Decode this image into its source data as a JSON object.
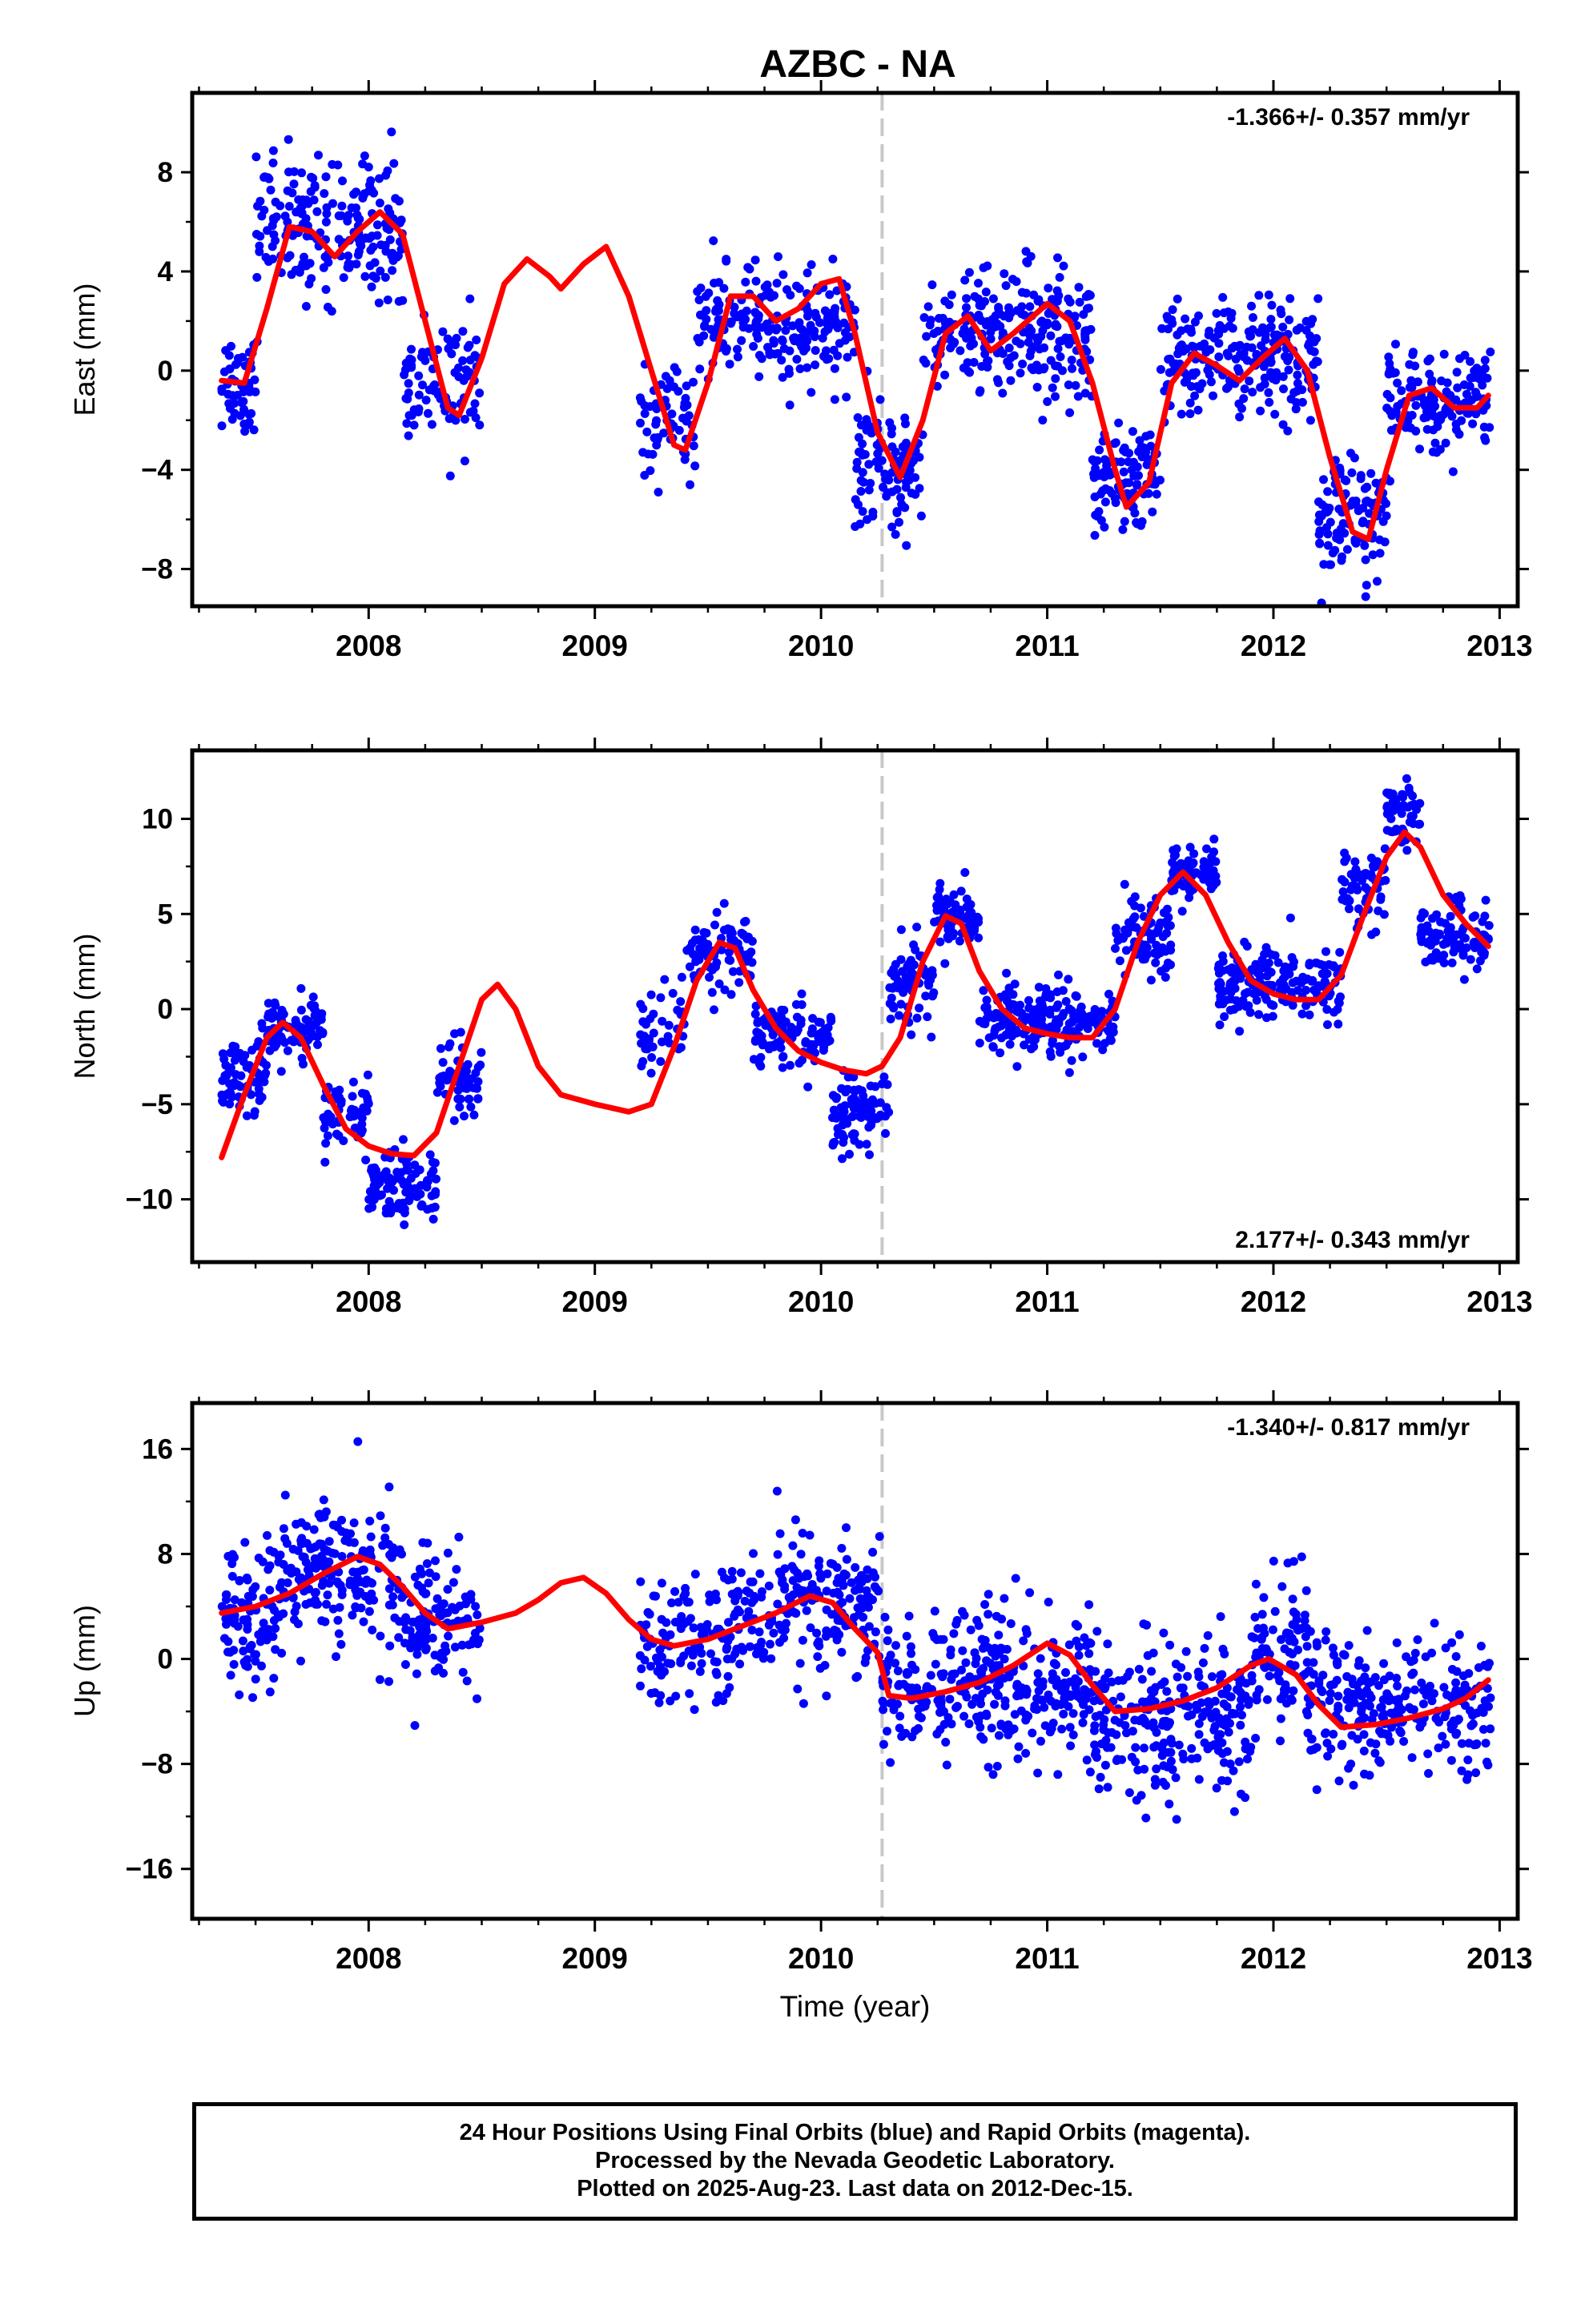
{
  "title": "AZBC - NA",
  "colors": {
    "points": "#0000ff",
    "fit": "#ff0000",
    "event_line": "#c8c8c8",
    "frame": "#000000"
  },
  "footer": {
    "line1": "24 Hour Positions Using Final Orbits (blue) and Rapid Orbits (magenta).",
    "line2": "Processed by the Nevada Geodetic Laboratory.",
    "line3": "Plotted on 2025-Aug-23. Last data on 2012-Dec-15."
  },
  "chart_data": [
    {
      "type": "scatter",
      "ylabel": "East (mm)",
      "xlabel": "",
      "rate_label": "-1.366+/- 0.357 mm/yr",
      "xlim": [
        2007.22,
        2013.08
      ],
      "ylim": [
        -9.5,
        11.2
      ],
      "yticks": [
        -8,
        -4,
        0,
        4,
        8
      ],
      "xticks": [
        2008,
        2009,
        2010,
        2011,
        2012,
        2013
      ],
      "event_line_x": 2010.27,
      "fit_curve": [
        [
          2007.35,
          -0.4
        ],
        [
          2007.45,
          -0.5
        ],
        [
          2007.55,
          2.5
        ],
        [
          2007.65,
          5.8
        ],
        [
          2007.75,
          5.6
        ],
        [
          2007.85,
          4.6
        ],
        [
          2007.95,
          5.6
        ],
        [
          2008.05,
          6.4
        ],
        [
          2008.15,
          5.5
        ],
        [
          2008.25,
          2.0
        ],
        [
          2008.35,
          -1.5
        ],
        [
          2008.4,
          -1.8
        ],
        [
          2008.5,
          0.5
        ],
        [
          2008.6,
          3.5
        ],
        [
          2008.7,
          4.5
        ],
        [
          2008.8,
          3.8
        ],
        [
          2008.85,
          3.3
        ],
        [
          2008.95,
          4.3
        ],
        [
          2009.05,
          5.0
        ],
        [
          2009.15,
          3.0
        ],
        [
          2009.25,
          0.0
        ],
        [
          2009.35,
          -3.0
        ],
        [
          2009.4,
          -3.2
        ],
        [
          2009.5,
          -0.5
        ],
        [
          2009.6,
          3.0
        ],
        [
          2009.7,
          3.0
        ],
        [
          2009.8,
          2.0
        ],
        [
          2009.9,
          2.5
        ],
        [
          2010.0,
          3.5
        ],
        [
          2010.08,
          3.7
        ],
        [
          2010.15,
          1.5
        ],
        [
          2010.25,
          -2.5
        ],
        [
          2010.35,
          -4.3
        ],
        [
          2010.45,
          -2.0
        ],
        [
          2010.55,
          1.5
        ],
        [
          2010.65,
          2.2
        ],
        [
          2010.75,
          0.8
        ],
        [
          2010.85,
          1.5
        ],
        [
          2011.0,
          2.7
        ],
        [
          2011.1,
          2.0
        ],
        [
          2011.2,
          -0.5
        ],
        [
          2011.3,
          -4.0
        ],
        [
          2011.35,
          -5.5
        ],
        [
          2011.45,
          -4.5
        ],
        [
          2011.55,
          -0.5
        ],
        [
          2011.65,
          0.7
        ],
        [
          2011.75,
          0.2
        ],
        [
          2011.85,
          -0.4
        ],
        [
          2011.95,
          0.5
        ],
        [
          2012.05,
          1.3
        ],
        [
          2012.15,
          0.0
        ],
        [
          2012.25,
          -3.5
        ],
        [
          2012.35,
          -6.5
        ],
        [
          2012.42,
          -6.8
        ],
        [
          2012.5,
          -4.0
        ],
        [
          2012.6,
          -1.0
        ],
        [
          2012.7,
          -0.7
        ],
        [
          2012.8,
          -1.5
        ],
        [
          2012.9,
          -1.5
        ],
        [
          2012.95,
          -1.0
        ]
      ],
      "point_segments": [
        {
          "x": [
            2007.35,
            2007.5
          ],
          "n": 50,
          "base": -0.4,
          "spread": 1.6
        },
        {
          "x": [
            2007.5,
            2008.15
          ],
          "n": 210,
          "base": 5.8,
          "spread": 1.9
        },
        {
          "x": [
            2008.15,
            2008.5
          ],
          "n": 90,
          "base": -0.6,
          "spread": 1.8
        },
        {
          "x": [
            2009.2,
            2009.45
          ],
          "n": 60,
          "base": -2.2,
          "spread": 1.6
        },
        {
          "x": [
            2009.45,
            2010.15
          ],
          "n": 220,
          "base": 1.8,
          "spread": 1.6
        },
        {
          "x": [
            2010.15,
            2010.45
          ],
          "n": 110,
          "base": -4.0,
          "spread": 1.8
        },
        {
          "x": [
            2010.45,
            2011.2
          ],
          "n": 250,
          "base": 1.6,
          "spread": 1.8
        },
        {
          "x": [
            2011.2,
            2011.5
          ],
          "n": 110,
          "base": -4.6,
          "spread": 1.6
        },
        {
          "x": [
            2011.5,
            2012.2
          ],
          "n": 230,
          "base": 0.5,
          "spread": 1.6
        },
        {
          "x": [
            2012.2,
            2012.5
          ],
          "n": 110,
          "base": -6.0,
          "spread": 1.7
        },
        {
          "x": [
            2012.5,
            2012.96
          ],
          "n": 150,
          "base": -1.2,
          "spread": 1.4
        }
      ]
    },
    {
      "type": "scatter",
      "ylabel": "North (mm)",
      "xlabel": "",
      "rate_label": "2.177+/- 0.343 mm/yr",
      "xlim": [
        2007.22,
        2013.08
      ],
      "ylim": [
        -13.3,
        13.6
      ],
      "yticks": [
        -10,
        -5,
        0,
        5,
        10
      ],
      "xticks": [
        2008,
        2009,
        2010,
        2011,
        2012,
        2013
      ],
      "event_line_x": 2010.27,
      "fit_curve": [
        [
          2007.35,
          -7.8
        ],
        [
          2007.45,
          -4.5
        ],
        [
          2007.55,
          -1.5
        ],
        [
          2007.62,
          -0.7
        ],
        [
          2007.7,
          -1.5
        ],
        [
          2007.8,
          -4.0
        ],
        [
          2007.9,
          -6.3
        ],
        [
          2008.0,
          -7.2
        ],
        [
          2008.1,
          -7.6
        ],
        [
          2008.2,
          -7.7
        ],
        [
          2008.3,
          -6.5
        ],
        [
          2008.4,
          -3.0
        ],
        [
          2008.5,
          0.5
        ],
        [
          2008.57,
          1.3
        ],
        [
          2008.65,
          0.0
        ],
        [
          2008.75,
          -3.0
        ],
        [
          2008.85,
          -4.5
        ],
        [
          2009.0,
          -5.0
        ],
        [
          2009.15,
          -5.4
        ],
        [
          2009.25,
          -5.0
        ],
        [
          2009.35,
          -2.0
        ],
        [
          2009.45,
          1.5
        ],
        [
          2009.55,
          3.5
        ],
        [
          2009.62,
          3.2
        ],
        [
          2009.7,
          1.0
        ],
        [
          2009.8,
          -1.0
        ],
        [
          2009.9,
          -2.2
        ],
        [
          2010.0,
          -2.8
        ],
        [
          2010.1,
          -3.2
        ],
        [
          2010.2,
          -3.4
        ],
        [
          2010.27,
          -3.0
        ],
        [
          2010.35,
          -1.5
        ],
        [
          2010.45,
          2.5
        ],
        [
          2010.55,
          4.9
        ],
        [
          2010.62,
          4.5
        ],
        [
          2010.7,
          2.0
        ],
        [
          2010.8,
          0.0
        ],
        [
          2010.9,
          -1.0
        ],
        [
          2011.0,
          -1.3
        ],
        [
          2011.1,
          -1.5
        ],
        [
          2011.2,
          -1.5
        ],
        [
          2011.3,
          0.0
        ],
        [
          2011.4,
          3.5
        ],
        [
          2011.5,
          6.0
        ],
        [
          2011.6,
          7.2
        ],
        [
          2011.7,
          6.0
        ],
        [
          2011.8,
          3.5
        ],
        [
          2011.9,
          1.5
        ],
        [
          2012.0,
          0.8
        ],
        [
          2012.1,
          0.5
        ],
        [
          2012.2,
          0.5
        ],
        [
          2012.3,
          1.8
        ],
        [
          2012.4,
          5.0
        ],
        [
          2012.5,
          8.0
        ],
        [
          2012.58,
          9.3
        ],
        [
          2012.65,
          8.5
        ],
        [
          2012.75,
          6.0
        ],
        [
          2012.85,
          4.5
        ],
        [
          2012.95,
          3.3
        ]
      ],
      "point_segments": [
        {
          "x": [
            2007.35,
            2007.55
          ],
          "n": 70,
          "base": -3.3,
          "spread": 1.4
        },
        {
          "x": [
            2007.55,
            2007.8
          ],
          "n": 90,
          "base": -1.2,
          "spread": 1.2
        },
        {
          "x": [
            2007.8,
            2008.0
          ],
          "n": 60,
          "base": -5.5,
          "spread": 1.5
        },
        {
          "x": [
            2008.0,
            2008.3
          ],
          "n": 100,
          "base": -9.3,
          "spread": 1.4
        },
        {
          "x": [
            2008.3,
            2008.5
          ],
          "n": 60,
          "base": -3.8,
          "spread": 1.7
        },
        {
          "x": [
            2009.2,
            2009.4
          ],
          "n": 40,
          "base": -1.5,
          "spread": 1.8
        },
        {
          "x": [
            2009.4,
            2009.7
          ],
          "n": 90,
          "base": 2.7,
          "spread": 1.3
        },
        {
          "x": [
            2009.7,
            2010.05
          ],
          "n": 110,
          "base": -1.3,
          "spread": 1.2
        },
        {
          "x": [
            2010.05,
            2010.3
          ],
          "n": 90,
          "base": -5.3,
          "spread": 1.4
        },
        {
          "x": [
            2010.3,
            2010.5
          ],
          "n": 70,
          "base": 1.5,
          "spread": 1.6
        },
        {
          "x": [
            2010.5,
            2010.7
          ],
          "n": 70,
          "base": 5.0,
          "spread": 1.1
        },
        {
          "x": [
            2010.7,
            2011.3
          ],
          "n": 200,
          "base": -0.6,
          "spread": 1.3
        },
        {
          "x": [
            2011.3,
            2011.55
          ],
          "n": 80,
          "base": 4.0,
          "spread": 1.5
        },
        {
          "x": [
            2011.55,
            2011.75
          ],
          "n": 70,
          "base": 7.1,
          "spread": 1.0
        },
        {
          "x": [
            2011.75,
            2012.3
          ],
          "n": 180,
          "base": 1.3,
          "spread": 1.4
        },
        {
          "x": [
            2012.3,
            2012.5
          ],
          "n": 60,
          "base": 6.5,
          "spread": 1.6
        },
        {
          "x": [
            2012.5,
            2012.65
          ],
          "n": 50,
          "base": 10.2,
          "spread": 1.1
        },
        {
          "x": [
            2012.65,
            2012.96
          ],
          "n": 100,
          "base": 3.8,
          "spread": 1.3
        }
      ]
    },
    {
      "type": "scatter",
      "ylabel": "Up (mm)",
      "xlabel": "Time (year)",
      "rate_label": "-1.340+/- 0.817 mm/yr",
      "xlim": [
        2007.22,
        2013.08
      ],
      "ylim": [
        -19.8,
        19.5
      ],
      "yticks": [
        -16,
        -8,
        0,
        8,
        16
      ],
      "xticks": [
        2008,
        2009,
        2010,
        2011,
        2012,
        2013
      ],
      "event_line_x": 2010.27,
      "fit_curve": [
        [
          2007.35,
          3.5
        ],
        [
          2007.5,
          4.0
        ],
        [
          2007.65,
          5.0
        ],
        [
          2007.8,
          6.5
        ],
        [
          2007.95,
          7.8
        ],
        [
          2008.05,
          7.2
        ],
        [
          2008.15,
          5.5
        ],
        [
          2008.25,
          3.5
        ],
        [
          2008.35,
          2.3
        ],
        [
          2008.5,
          2.8
        ],
        [
          2008.65,
          3.5
        ],
        [
          2008.75,
          4.5
        ],
        [
          2008.85,
          5.8
        ],
        [
          2008.95,
          6.2
        ],
        [
          2009.05,
          5.0
        ],
        [
          2009.15,
          3.0
        ],
        [
          2009.25,
          1.5
        ],
        [
          2009.35,
          1.0
        ],
        [
          2009.5,
          1.5
        ],
        [
          2009.65,
          2.5
        ],
        [
          2009.8,
          3.5
        ],
        [
          2009.95,
          4.8
        ],
        [
          2010.05,
          4.3
        ],
        [
          2010.15,
          2.3
        ],
        [
          2010.25,
          0.5
        ],
        [
          2010.3,
          -2.8
        ],
        [
          2010.4,
          -3.0
        ],
        [
          2010.55,
          -2.5
        ],
        [
          2010.7,
          -1.8
        ],
        [
          2010.85,
          -0.5
        ],
        [
          2011.0,
          1.2
        ],
        [
          2011.1,
          0.3
        ],
        [
          2011.2,
          -2.0
        ],
        [
          2011.3,
          -4.0
        ],
        [
          2011.45,
          -3.8
        ],
        [
          2011.6,
          -3.2
        ],
        [
          2011.75,
          -2.2
        ],
        [
          2011.9,
          -0.5
        ],
        [
          2011.98,
          0.0
        ],
        [
          2012.1,
          -1.2
        ],
        [
          2012.2,
          -3.5
        ],
        [
          2012.3,
          -5.2
        ],
        [
          2012.45,
          -5.0
        ],
        [
          2012.6,
          -4.5
        ],
        [
          2012.75,
          -3.8
        ],
        [
          2012.85,
          -3.0
        ],
        [
          2012.95,
          -1.6
        ]
      ],
      "point_segments": [
        {
          "x": [
            2007.35,
            2007.6
          ],
          "n": 90,
          "base": 2.8,
          "spread": 4.2
        },
        {
          "x": [
            2007.6,
            2008.15
          ],
          "n": 200,
          "base": 6.5,
          "spread": 3.8
        },
        {
          "x": [
            2008.15,
            2008.5
          ],
          "n": 110,
          "base": 2.8,
          "spread": 3.6
        },
        {
          "x": [
            2009.2,
            2009.6
          ],
          "n": 110,
          "base": 1.5,
          "spread": 3.8
        },
        {
          "x": [
            2009.6,
            2010.27
          ],
          "n": 220,
          "base": 4.0,
          "spread": 3.8
        },
        {
          "x": [
            2010.27,
            2011.2
          ],
          "n": 330,
          "base": -2.2,
          "spread": 4.0
        },
        {
          "x": [
            2011.2,
            2011.9
          ],
          "n": 250,
          "base": -4.5,
          "spread": 4.0
        },
        {
          "x": [
            2011.9,
            2012.15
          ],
          "n": 90,
          "base": 0.5,
          "spread": 3.8
        },
        {
          "x": [
            2012.15,
            2012.96
          ],
          "n": 270,
          "base": -3.5,
          "spread": 3.6
        }
      ]
    }
  ]
}
